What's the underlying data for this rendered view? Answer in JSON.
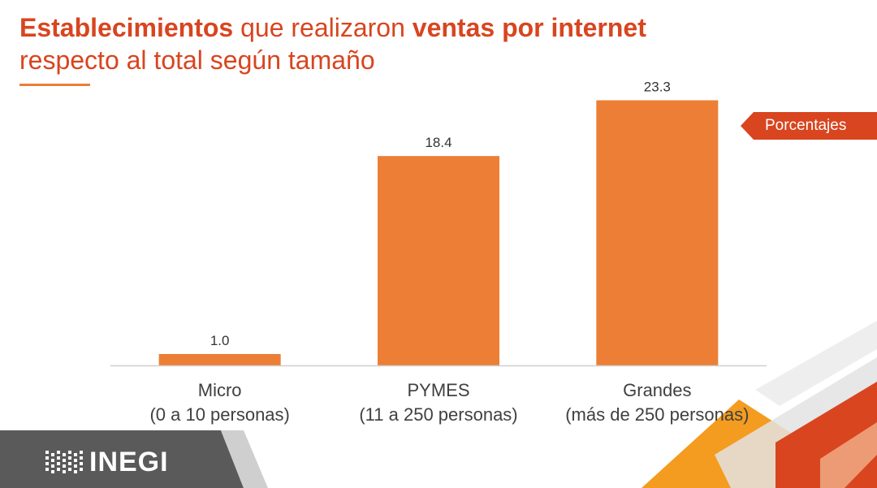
{
  "title": {
    "part1_bold": "Establecimientos",
    "part2": " que realizaron ",
    "part3_bold": "ventas por internet",
    "line2": "respecto al total según tamaño"
  },
  "unit_label": "Porcentajes",
  "logo": {
    "text": "INEGI"
  },
  "colors": {
    "accent": "#d8451f",
    "bar": "#ec7f35",
    "footer_gray": "#5a5a5a",
    "deco_orange": "#f39c1f",
    "deco_red": "#d8451f"
  },
  "chart_data": {
    "type": "bar",
    "title": "Establecimientos que realizaron ventas por internet respecto al total según tamaño",
    "categories": [
      {
        "line1": "Micro",
        "line2": "(0 a 10 personas)"
      },
      {
        "line1": "PYMES",
        "line2": "(11 a 250 personas)"
      },
      {
        "line1": "Grandes",
        "line2": "(más de 250 personas)"
      }
    ],
    "values": [
      1.0,
      18.4,
      23.3
    ],
    "data_labels": [
      "1.0",
      "18.4",
      "23.3"
    ],
    "ylim": [
      0,
      25
    ],
    "unit": "Porcentajes",
    "grid": false,
    "legend": "none"
  }
}
